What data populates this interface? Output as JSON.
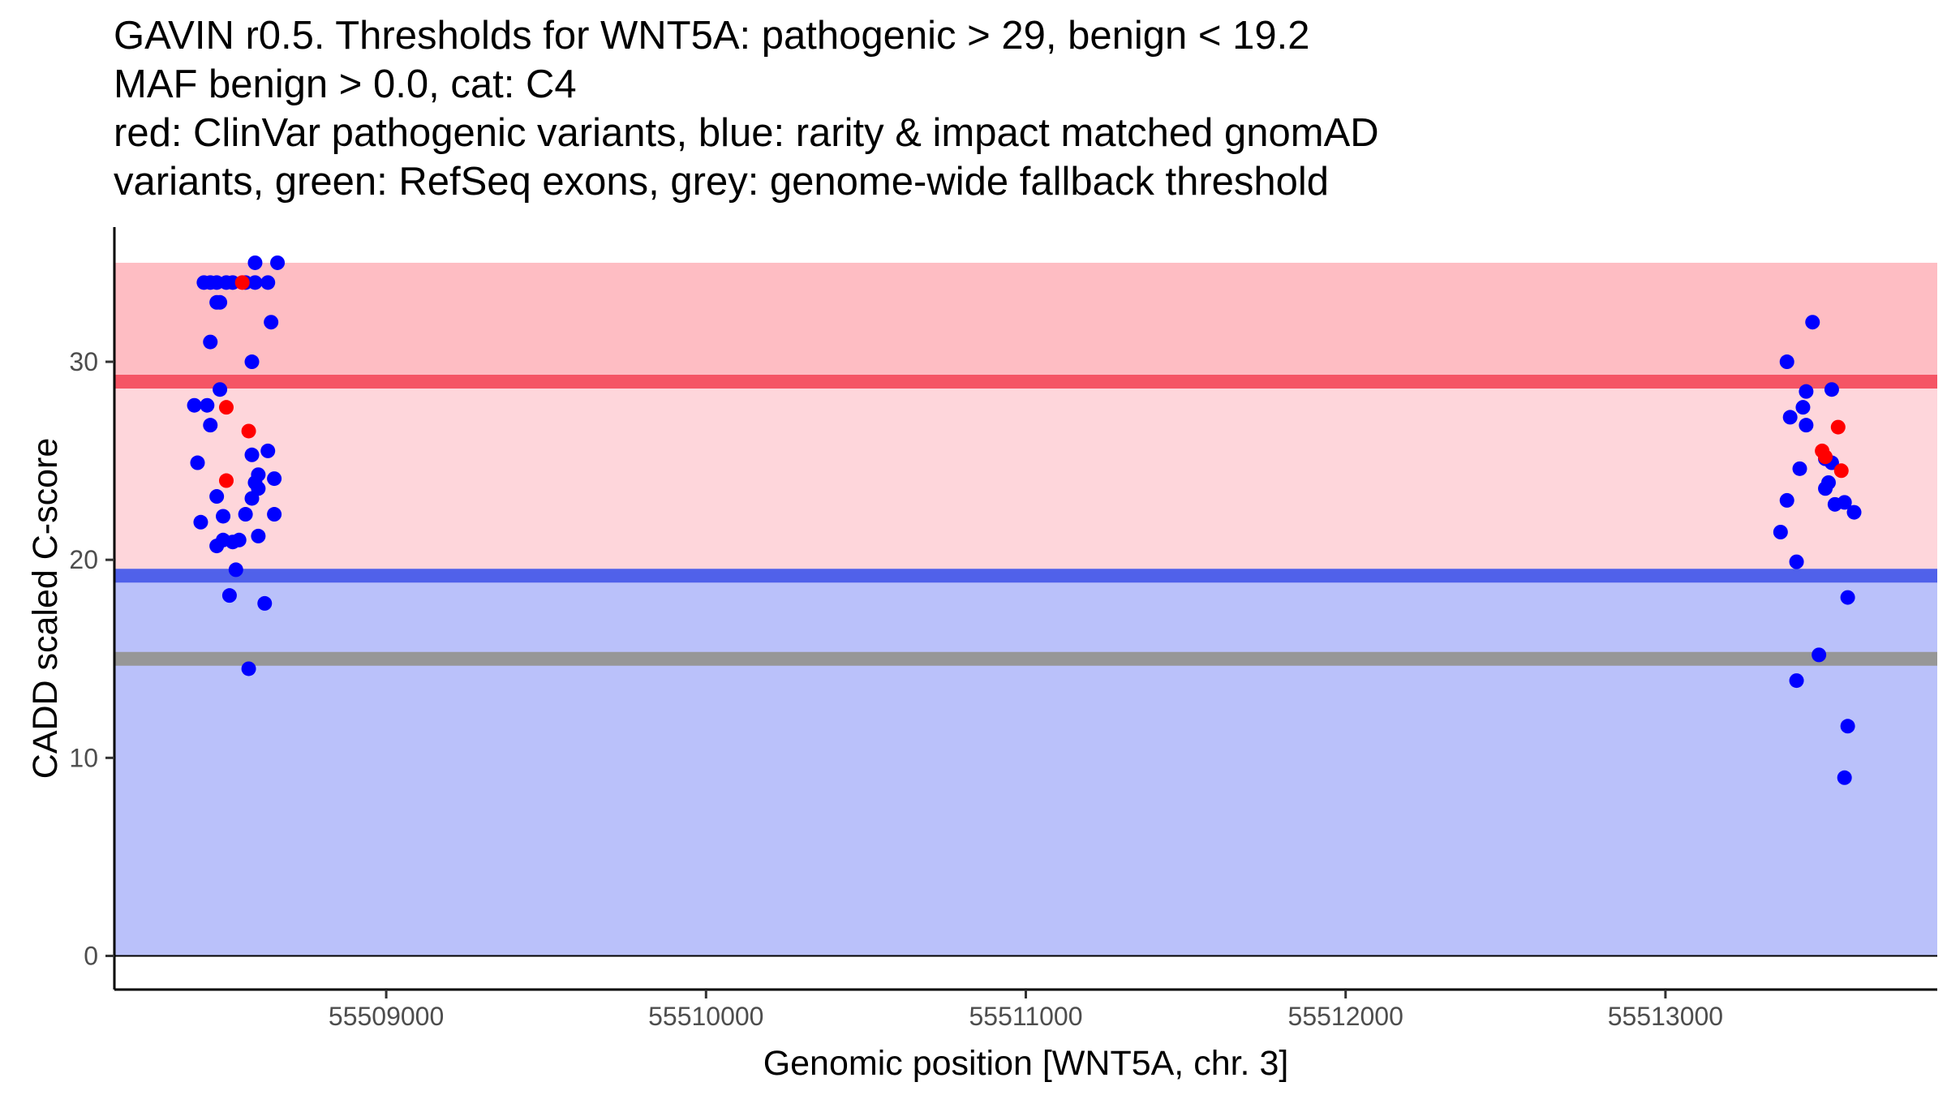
{
  "chart_data": {
    "type": "scatter",
    "title_lines": [
      "GAVIN r0.5. Thresholds for WNT5A: pathogenic > 29, benign < 19.2",
      "MAF benign > 0.0, cat: C4",
      "red: ClinVar pathogenic variants, blue: rarity & impact matched gnomAD",
      "variants, green: RefSeq exons, grey: genome-wide fallback threshold"
    ],
    "xlabel": "Genomic position [WNT5A, chr. 3]",
    "ylabel": "CADD scaled C-score",
    "xlim": [
      55508150,
      55513850
    ],
    "ylim": [
      -1.7,
      36.8
    ],
    "xticks": [
      55509000,
      55510000,
      55511000,
      55512000,
      55513000
    ],
    "xtick_labels": [
      "55509000",
      "55510000",
      "55511000",
      "55512000",
      "55513000"
    ],
    "yticks": [
      0,
      10,
      20,
      30
    ],
    "ytick_labels": [
      "0",
      "10",
      "20",
      "30"
    ],
    "thresholds": {
      "pathogenic": 29,
      "benign": 19.2,
      "fallback": 15
    },
    "bands": [
      {
        "name": "benign-region",
        "from": 0,
        "to": 19.2,
        "color": "#bac1fa"
      },
      {
        "name": "uncertain-region",
        "from": 19.2,
        "to": 29,
        "color": "#fed6db"
      },
      {
        "name": "pathogenic-region",
        "from": 29,
        "to": 35,
        "color": "#febdc3"
      }
    ],
    "colors": {
      "pathogenic_line": "#f55565",
      "benign_line": "#5061ea",
      "fallback_line": "#979797",
      "gnomad": "#0000ff",
      "clinvar": "#ff0000"
    },
    "series": [
      {
        "name": "gnomAD",
        "color": "#0000ff",
        "points": [
          [
            55508430,
            34
          ],
          [
            55508450,
            34
          ],
          [
            55508470,
            34
          ],
          [
            55508500,
            34
          ],
          [
            55508520,
            34
          ],
          [
            55508560,
            34
          ],
          [
            55508590,
            34
          ],
          [
            55508630,
            34
          ],
          [
            55508590,
            35
          ],
          [
            55508660,
            35
          ],
          [
            55508470,
            33
          ],
          [
            55508480,
            33
          ],
          [
            55508640,
            32
          ],
          [
            55508450,
            31
          ],
          [
            55508580,
            30
          ],
          [
            55508480,
            28.6
          ],
          [
            55508400,
            27.8
          ],
          [
            55508440,
            27.8
          ],
          [
            55508450,
            26.8
          ],
          [
            55508630,
            25.5
          ],
          [
            55508580,
            25.3
          ],
          [
            55508410,
            24.9
          ],
          [
            55508600,
            24.3
          ],
          [
            55508650,
            24.1
          ],
          [
            55508590,
            23.9
          ],
          [
            55508600,
            23.6
          ],
          [
            55508470,
            23.2
          ],
          [
            55508580,
            23.1
          ],
          [
            55508560,
            22.3
          ],
          [
            55508490,
            22.2
          ],
          [
            55508650,
            22.3
          ],
          [
            55508420,
            21.9
          ],
          [
            55508600,
            21.2
          ],
          [
            55508490,
            21.0
          ],
          [
            55508520,
            20.9
          ],
          [
            55508540,
            21.0
          ],
          [
            55508470,
            20.7
          ],
          [
            55508530,
            19.5
          ],
          [
            55508510,
            18.2
          ],
          [
            55508620,
            17.8
          ],
          [
            55508570,
            14.5
          ],
          [
            55513380,
            30.0
          ],
          [
            55513460,
            32.0
          ],
          [
            55513440,
            28.5
          ],
          [
            55513520,
            28.6
          ],
          [
            55513430,
            27.7
          ],
          [
            55513390,
            27.2
          ],
          [
            55513440,
            26.8
          ],
          [
            55513500,
            25.1
          ],
          [
            55513520,
            24.9
          ],
          [
            55513420,
            24.6
          ],
          [
            55513510,
            23.9
          ],
          [
            55513500,
            23.6
          ],
          [
            55513380,
            23.0
          ],
          [
            55513530,
            22.8
          ],
          [
            55513560,
            22.9
          ],
          [
            55513590,
            22.4
          ],
          [
            55513360,
            21.4
          ],
          [
            55513410,
            19.9
          ],
          [
            55513570,
            18.1
          ],
          [
            55513480,
            15.2
          ],
          [
            55513410,
            13.9
          ],
          [
            55513570,
            11.6
          ],
          [
            55513560,
            9.0
          ]
        ]
      },
      {
        "name": "ClinVar",
        "color": "#ff0000",
        "points": [
          [
            55508550,
            34
          ],
          [
            55508500,
            27.7
          ],
          [
            55508570,
            26.5
          ],
          [
            55508500,
            24.0
          ],
          [
            55513540,
            26.7
          ],
          [
            55513490,
            25.5
          ],
          [
            55513500,
            25.2
          ],
          [
            55513550,
            24.5
          ]
        ]
      }
    ]
  }
}
